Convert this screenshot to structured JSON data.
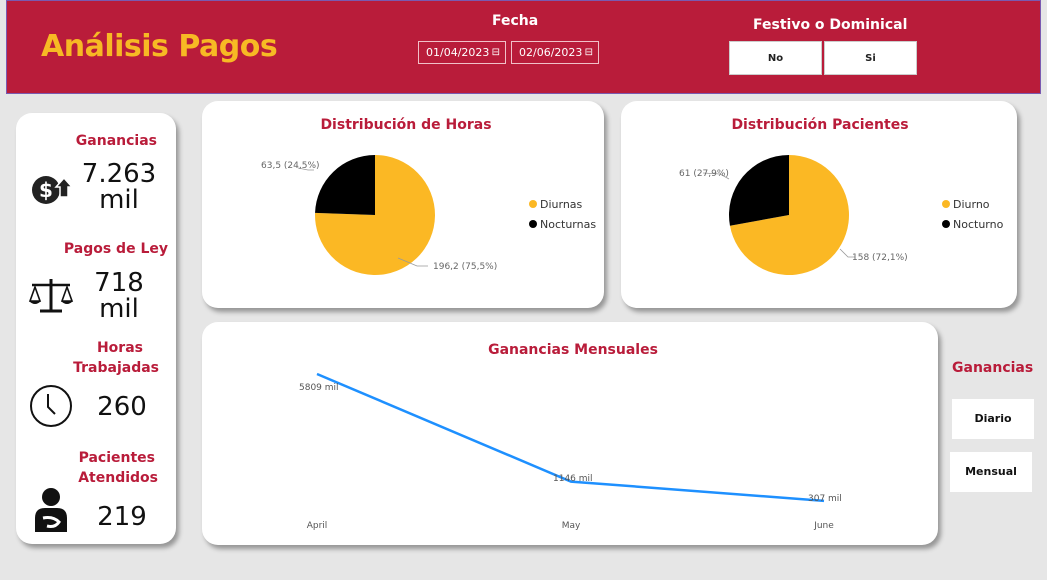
{
  "header": {
    "title": "Análisis Pagos",
    "fecha_label": "Fecha",
    "date_start": "01/04/2023",
    "date_end": "02/06/2023",
    "festivo_label": "Festivo o Dominical",
    "festivo_options": [
      "No",
      "Si"
    ]
  },
  "kpis": {
    "ganancias": {
      "label": "Ganancias",
      "value": "7.263",
      "unit": "mil",
      "icon": "dollar-growth-icon"
    },
    "pagos_ley": {
      "label": "Pagos de Ley",
      "value": "718",
      "unit": "mil",
      "icon": "scale-icon"
    },
    "horas": {
      "label_line1": "Horas",
      "label_line2": "Trabajadas",
      "value": "260",
      "icon": "clock-icon"
    },
    "pacientes": {
      "label_line1": "Pacientes",
      "label_line2": "Atendidos",
      "value": "219",
      "icon": "patient-icon"
    }
  },
  "side": {
    "title": "Ganancias",
    "buttons": [
      "Diario",
      "Mensual"
    ]
  },
  "colors": {
    "brand": "#b91c3a",
    "accent": "#f7b924",
    "series_primary": "#fbb824",
    "series_secondary": "#000000",
    "line": "#1e90ff"
  },
  "chart_data": [
    {
      "type": "pie",
      "title": "Distribución de Horas",
      "categories": [
        "Diurnas",
        "Nocturnas"
      ],
      "values": [
        196.2,
        63.5
      ],
      "labels": [
        "196,2 (75,5%)",
        "63,5 (24,5%)"
      ],
      "colors": [
        "#fbb824",
        "#000000"
      ],
      "legend": "right"
    },
    {
      "type": "pie",
      "title": "Distribución Pacientes",
      "categories": [
        "Diurno",
        "Nocturno"
      ],
      "values": [
        158,
        61
      ],
      "labels": [
        "158 (72,1%)",
        "61 (27,9%)"
      ],
      "colors": [
        "#fbb824",
        "#000000"
      ],
      "legend": "right"
    },
    {
      "type": "line",
      "title": "Ganancias Mensuales",
      "categories": [
        "April",
        "May",
        "June"
      ],
      "values": [
        5809,
        1146,
        307
      ],
      "labels": [
        "5809 mil",
        "1146 mil",
        "307 mil"
      ],
      "color": "#1e90ff",
      "grid": false
    }
  ]
}
